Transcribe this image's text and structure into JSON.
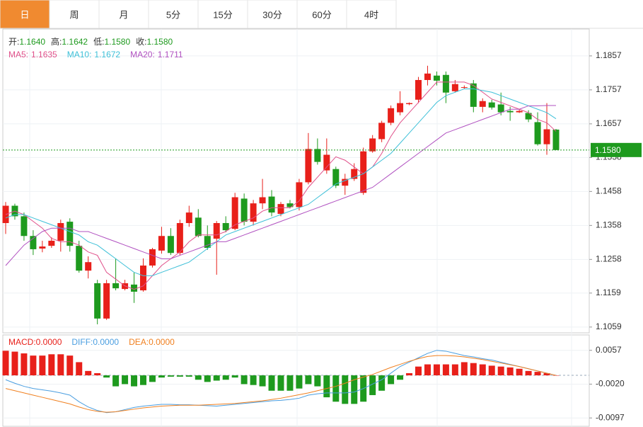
{
  "tabs": [
    "日",
    "周",
    "月",
    "5分",
    "15分",
    "30分",
    "60分",
    "4时"
  ],
  "active_tab": 0,
  "info": [
    {
      "label": "开:",
      "value": "1.1640"
    },
    {
      "label": "高:",
      "value": "1.1642"
    },
    {
      "label": "低:",
      "value": "1.1580"
    },
    {
      "label": "收:",
      "value": "1.1580"
    }
  ],
  "chart_data": [
    {
      "type": "candlestick",
      "up_color": "#e8201a",
      "down_color": "#1e9a1e",
      "ylim": [
        1.1042,
        1.1936
      ],
      "yticks": [
        1.1857,
        1.1757,
        1.1657,
        1.1558,
        1.1458,
        1.1358,
        1.1258,
        1.1159,
        1.1059
      ],
      "last_price": {
        "value": 1.158,
        "label": "1.1580"
      },
      "open": [
        1.1365,
        1.1416,
        1.1385,
        1.1327,
        1.129,
        1.1298,
        1.1313,
        1.1369,
        1.1298,
        1.1225,
        1.1188,
        1.1084,
        1.1188,
        1.1171,
        1.1184,
        1.1167,
        1.124,
        1.1284,
        1.1327,
        1.1277,
        1.1365,
        1.1381,
        1.1327,
        1.1319,
        1.1365,
        1.1348,
        1.1437,
        1.1369,
        1.1423,
        1.1443,
        1.1392,
        1.1423,
        1.1412,
        1.1485,
        1.1583,
        1.152,
        1.1524,
        1.1475,
        1.1495,
        1.1454,
        1.1576,
        1.1612,
        1.166,
        1.1691,
        1.1715,
        1.1728,
        1.1786,
        1.1799,
        1.1801,
        1.1753,
        1.1763,
        1.1776,
        1.1707,
        1.172,
        1.1714,
        1.1695,
        1.1691,
        1.1689,
        1.1662,
        1.1597,
        1.164
      ],
      "high": [
        1.1427,
        1.1422,
        1.1396,
        1.1344,
        1.1313,
        1.1323,
        1.1375,
        1.1379,
        1.1313,
        1.1267,
        1.1198,
        1.1198,
        1.1261,
        1.1198,
        1.1219,
        1.1261,
        1.1292,
        1.1354,
        1.135,
        1.1375,
        1.1416,
        1.1406,
        1.1358,
        1.1371,
        1.1385,
        1.1454,
        1.1452,
        1.1433,
        1.1495,
        1.1462,
        1.1427,
        1.1433,
        1.1495,
        1.163,
        1.1614,
        1.1614,
        1.1531,
        1.151,
        1.1541,
        1.1587,
        1.1624,
        1.1666,
        1.1711,
        1.1753,
        1.172,
        1.1795,
        1.1828,
        1.1811,
        1.1811,
        1.1786,
        1.177,
        1.1786,
        1.1732,
        1.1728,
        1.1749,
        1.1707,
        1.1699,
        1.1697,
        1.1691,
        1.1718,
        1.1642
      ],
      "low": [
        1.1333,
        1.1375,
        1.1313,
        1.1271,
        1.1279,
        1.1292,
        1.1281,
        1.1281,
        1.1219,
        1.1202,
        1.1067,
        1.108,
        1.1167,
        1.1167,
        1.113,
        1.1163,
        1.1234,
        1.1275,
        1.1271,
        1.1271,
        1.1354,
        1.1323,
        1.1286,
        1.1213,
        1.1338,
        1.1344,
        1.1358,
        1.1358,
        1.1406,
        1.1385,
        1.1385,
        1.1408,
        1.1402,
        1.1479,
        1.1537,
        1.151,
        1.1468,
        1.1448,
        1.1489,
        1.1448,
        1.1572,
        1.1603,
        1.1653,
        1.1682,
        1.1712,
        1.1718,
        1.177,
        1.177,
        1.1718,
        1.1749,
        1.1759,
        1.1691,
        1.1691,
        1.1699,
        1.1682,
        1.1666,
        1.1689,
        1.1662,
        1.1593,
        1.1566,
        1.158
      ],
      "close": [
        1.1416,
        1.1385,
        1.1327,
        1.1288,
        1.1296,
        1.1313,
        1.1365,
        1.1298,
        1.1225,
        1.125,
        1.1084,
        1.1188,
        1.1173,
        1.1188,
        1.1163,
        1.124,
        1.1288,
        1.1327,
        1.1277,
        1.1365,
        1.1396,
        1.1327,
        1.1292,
        1.1365,
        1.1344,
        1.1441,
        1.1369,
        1.1423,
        1.1441,
        1.1396,
        1.1421,
        1.1412,
        1.1485,
        1.1583,
        1.1545,
        1.1566,
        1.1475,
        1.1495,
        1.1524,
        1.1576,
        1.1614,
        1.166,
        1.1703,
        1.1718,
        1.1718,
        1.1786,
        1.1805,
        1.1784,
        1.1749,
        1.1774,
        1.1765,
        1.1707,
        1.1724,
        1.1705,
        1.1691,
        1.1691,
        1.1695,
        1.167,
        1.1597,
        1.1641,
        1.158
      ],
      "series": [
        {
          "name": "MA5:",
          "last_label": "1.1635",
          "color": "#e0508a",
          "values": [
            1.139,
            1.14,
            1.139,
            1.137,
            1.135,
            1.132,
            1.131,
            1.131,
            1.13,
            1.128,
            1.127,
            1.122,
            1.12,
            1.118,
            1.117,
            1.118,
            1.121,
            1.124,
            1.126,
            1.128,
            1.131,
            1.133,
            1.133,
            1.133,
            1.134,
            1.136,
            1.137,
            1.138,
            1.14,
            1.141,
            1.141,
            1.141,
            1.143,
            1.147,
            1.15,
            1.153,
            1.156,
            1.155,
            1.153,
            1.151,
            1.153,
            1.157,
            1.162,
            1.166,
            1.169,
            1.172,
            1.175,
            1.178,
            1.178,
            1.178,
            1.178,
            1.177,
            1.175,
            1.173,
            1.172,
            1.171,
            1.17,
            1.169,
            1.167,
            1.166,
            1.1635
          ]
        },
        {
          "name": "MA10:",
          "last_label": "1.1672",
          "color": "#3ec0d8",
          "values": [
            1.138,
            1.139,
            1.139,
            1.138,
            1.137,
            1.136,
            1.135,
            1.134,
            1.133,
            1.131,
            1.13,
            1.128,
            1.126,
            1.124,
            1.122,
            1.121,
            1.121,
            1.122,
            1.123,
            1.124,
            1.125,
            1.127,
            1.129,
            1.131,
            1.133,
            1.134,
            1.135,
            1.136,
            1.137,
            1.138,
            1.139,
            1.14,
            1.141,
            1.142,
            1.144,
            1.146,
            1.148,
            1.149,
            1.15,
            1.151,
            1.153,
            1.155,
            1.157,
            1.16,
            1.163,
            1.166,
            1.169,
            1.172,
            1.174,
            1.175,
            1.176,
            1.176,
            1.1755,
            1.175,
            1.174,
            1.173,
            1.172,
            1.171,
            1.17,
            1.169,
            1.1672
          ]
        },
        {
          "name": "MA20:",
          "last_label": "1.1711",
          "color": "#b050c0",
          "values": [
            1.124,
            1.127,
            1.13,
            1.132,
            1.134,
            1.135,
            1.135,
            1.135,
            1.134,
            1.134,
            1.133,
            1.132,
            1.131,
            1.13,
            1.129,
            1.128,
            1.127,
            1.126,
            1.126,
            1.127,
            1.128,
            1.129,
            1.13,
            1.131,
            1.131,
            1.132,
            1.133,
            1.134,
            1.135,
            1.136,
            1.137,
            1.138,
            1.139,
            1.14,
            1.141,
            1.142,
            1.143,
            1.144,
            1.145,
            1.146,
            1.147,
            1.149,
            1.151,
            1.153,
            1.155,
            1.157,
            1.159,
            1.161,
            1.163,
            1.164,
            1.165,
            1.166,
            1.167,
            1.168,
            1.169,
            1.17,
            1.17,
            1.171,
            1.171,
            1.1711,
            1.1711
          ]
        }
      ]
    },
    {
      "type": "macd",
      "up_color": "#e8201a",
      "down_color": "#1e9a1e",
      "ylim": [
        -0.0116,
        0.0092
      ],
      "yticks": [
        0.0057,
        {
          "value": -0.002,
          "label": "-0.0020"
        },
        -0.0097
      ],
      "bars": {
        "name": "MACD:",
        "last_label": "0.0000",
        "values": [
          0.0056,
          0.0054,
          0.005,
          0.0045,
          0.0045,
          0.0048,
          0.0048,
          0.0045,
          0.003,
          0.001,
          0.0005,
          -0.0005,
          -0.0025,
          -0.002,
          -0.0025,
          -0.0022,
          -0.0015,
          -0.0005,
          -0.0003,
          -0.0003,
          -0.0003,
          -0.001,
          -0.0015,
          -0.0012,
          -0.001,
          -0.0005,
          -0.002,
          -0.0022,
          -0.0025,
          -0.0035,
          -0.0035,
          -0.0035,
          -0.003,
          -0.002,
          -0.0025,
          -0.005,
          -0.006,
          -0.0065,
          -0.0065,
          -0.006,
          -0.0045,
          -0.0035,
          -0.002,
          -0.001,
          0.0005,
          0.002,
          0.0025,
          0.0025,
          0.0025,
          0.0025,
          0.003,
          0.0028,
          0.0025,
          0.0022,
          0.002,
          0.0018,
          0.0015,
          0.001,
          0.0008,
          0.0005,
          0.0
        ]
      },
      "series": [
        {
          "name": "DIFF:",
          "last_label": "0.0000",
          "color": "#4a9ee0",
          "values": [
            -0.001,
            -0.0018,
            -0.0025,
            -0.003,
            -0.0033,
            -0.0036,
            -0.004,
            -0.0045,
            -0.006,
            -0.0072,
            -0.008,
            -0.0085,
            -0.0083,
            -0.0078,
            -0.0073,
            -0.007,
            -0.0068,
            -0.0066,
            -0.0066,
            -0.0067,
            -0.0067,
            -0.0068,
            -0.0069,
            -0.007,
            -0.0068,
            -0.0066,
            -0.0064,
            -0.0062,
            -0.006,
            -0.0058,
            -0.0057,
            -0.0055,
            -0.0052,
            -0.0045,
            -0.0042,
            -0.004,
            -0.004,
            -0.004,
            -0.0038,
            -0.003,
            -0.002,
            -0.001,
            0.0005,
            0.002,
            0.003,
            0.004,
            0.005,
            0.0057,
            0.0055,
            0.005,
            0.0045,
            0.0042,
            0.0038,
            0.0035,
            0.003,
            0.0025,
            0.002,
            0.0015,
            0.001,
            0.0005,
            0.0
          ]
        },
        {
          "name": "DEA:",
          "last_label": "0.0000",
          "color": "#f08020",
          "values": [
            -0.003,
            -0.0035,
            -0.004,
            -0.0045,
            -0.005,
            -0.0055,
            -0.006,
            -0.0065,
            -0.0072,
            -0.0078,
            -0.0082,
            -0.0084,
            -0.0083,
            -0.008,
            -0.0077,
            -0.0074,
            -0.0072,
            -0.007,
            -0.0069,
            -0.0068,
            -0.0068,
            -0.0068,
            -0.0067,
            -0.0066,
            -0.0065,
            -0.0064,
            -0.0062,
            -0.006,
            -0.0058,
            -0.0055,
            -0.0052,
            -0.0048,
            -0.0044,
            -0.004,
            -0.0035,
            -0.003,
            -0.0025,
            -0.0018,
            -0.001,
            -0.0004,
            0.0002,
            0.001,
            0.0018,
            0.0025,
            0.0032,
            0.0038,
            0.0043,
            0.0045,
            0.0045,
            0.0044,
            0.0042,
            0.0039,
            0.0036,
            0.0032,
            0.0028,
            0.0024,
            0.002,
            0.0015,
            0.001,
            0.0005,
            0.0
          ]
        }
      ]
    }
  ]
}
